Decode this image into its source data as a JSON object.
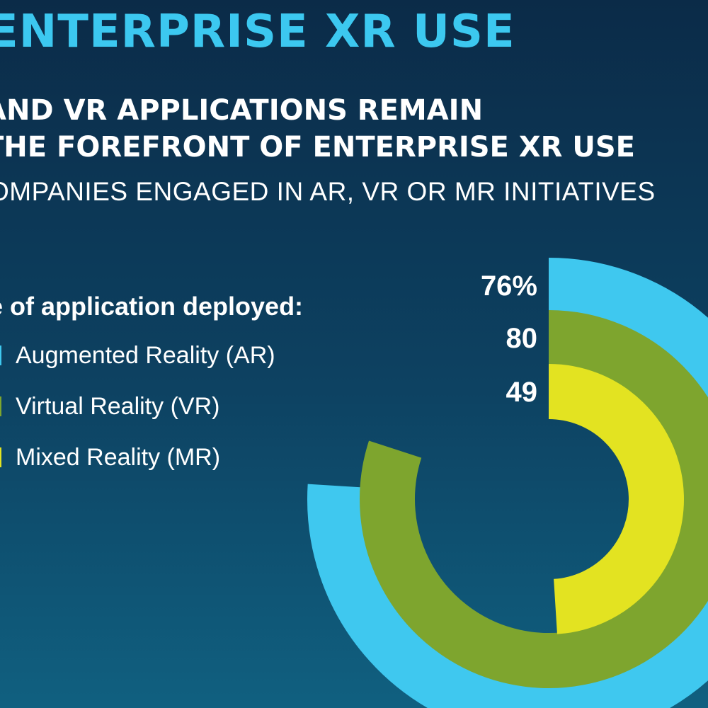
{
  "header": {
    "title": "ENTERPRISE XR USE",
    "subtitle_line1": "AND VR APPLICATIONS REMAIN",
    "subtitle_line2": "THE FOREFRONT OF ENTERPRISE XR USE",
    "caption": "OMPANIES ENGAGED IN AR, VR OR MR INITIATIVES"
  },
  "legend": {
    "title": "e of application deployed:"
  },
  "chart_data": {
    "type": "radial_bar",
    "series": [
      {
        "name": "Augmented Reality (AR)",
        "value": 76,
        "label": "76%",
        "color": "#3fc8ef"
      },
      {
        "name": "Virtual Reality (VR)",
        "value": 80,
        "label": "80",
        "color": "#7ea52e"
      },
      {
        "name": "Mixed Reality (MR)",
        "value": 49,
        "label": "49",
        "color": "#e3e321"
      }
    ],
    "max": 100,
    "unit": "%"
  }
}
